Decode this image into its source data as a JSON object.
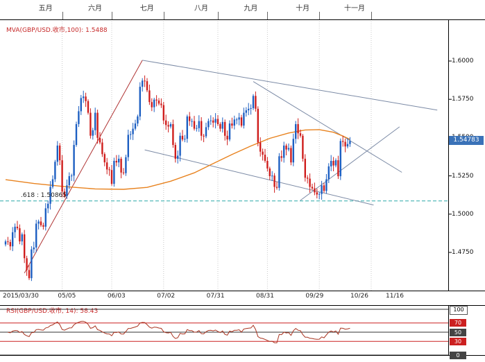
{
  "window": {
    "app_background": "#ffffff",
    "symbol": "GBP/USD"
  },
  "main_chart": {
    "indicator_label": "MVA(GBP/USD.收市,100): 1.5488",
    "last_price_label": "1.54783",
    "fib_label": ".618 : 1.50865"
  },
  "rsi_panel": {
    "label": "RSI(GBP/USD.收市, 14): 58.43",
    "level_labels": [
      "100",
      "70",
      "50",
      "30",
      "0"
    ]
  },
  "chart_data": {
    "type": "candlestick",
    "title": "GBP/USD daily candlesticks with MVA(100), trendlines, 61.8% retracement level and RSI(14) sub-panel",
    "x_axis": {
      "month_labels": [
        {
          "label": "五月",
          "idx": 24
        },
        {
          "label": "六月",
          "idx": 45
        },
        {
          "label": "七月",
          "idx": 67
        },
        {
          "label": "八月",
          "idx": 90
        },
        {
          "label": "九月",
          "idx": 111
        },
        {
          "label": "十月",
          "idx": 133
        },
        {
          "label": "十一月",
          "idx": 155
        }
      ],
      "date_labels": [
        {
          "label": "2015/03/30",
          "idx": 0,
          "align": "left"
        },
        {
          "label": "05/05",
          "idx": 26
        },
        {
          "label": "06/03",
          "idx": 47
        },
        {
          "label": "07/02",
          "idx": 68
        },
        {
          "label": "07/31",
          "idx": 89
        },
        {
          "label": "08/31",
          "idx": 110
        },
        {
          "label": "09/29",
          "idx": 131
        },
        {
          "label": "10/26",
          "idx": 150
        },
        {
          "label": "11/16",
          "idx": 165
        }
      ]
    },
    "y_axis": {
      "tick_labels": [
        "1.6000",
        "1.5750",
        "1.5500",
        "1.5250",
        "1.5000",
        "1.4750"
      ],
      "tick_values": [
        1.6,
        1.575,
        1.55,
        1.525,
        1.5,
        1.475
      ]
    },
    "closes": [
      1.4822,
      1.4818,
      1.479,
      1.4882,
      1.4918,
      1.4908,
      1.4822,
      1.4868,
      1.4712,
      1.4635,
      1.4582,
      1.477,
      1.4782,
      1.4938,
      1.4952,
      1.4928,
      1.4918,
      1.5038,
      1.5068,
      1.5178,
      1.5228,
      1.5342,
      1.5448,
      1.5352,
      1.5148,
      1.5118,
      1.5188,
      1.5248,
      1.5252,
      1.5452,
      1.5588,
      1.5672,
      1.5758,
      1.5768,
      1.5738,
      1.5662,
      1.5512,
      1.5548,
      1.5662,
      1.5498,
      1.5468,
      1.5392,
      1.5338,
      1.5292,
      1.5288,
      1.5198,
      1.5348,
      1.5338,
      1.5362,
      1.5272,
      1.5268,
      1.5372,
      1.5518,
      1.5522,
      1.5558,
      1.5592,
      1.5638,
      1.5832,
      1.5872,
      1.5868,
      1.5808,
      1.5732,
      1.5698,
      1.5748,
      1.5742,
      1.5722,
      1.5712,
      1.5612,
      1.5582,
      1.5572,
      1.5588,
      1.5452,
      1.5362,
      1.5382,
      1.5512,
      1.5488,
      1.5492,
      1.5638,
      1.5608,
      1.5608,
      1.5558,
      1.5562,
      1.5608,
      1.5512,
      1.5508,
      1.5568,
      1.5608,
      1.5612,
      1.5598,
      1.5622,
      1.5588,
      1.5558,
      1.5602,
      1.5512,
      1.5488,
      1.5592,
      1.5578,
      1.5618,
      1.5618,
      1.5632,
      1.5578,
      1.5662,
      1.5678,
      1.5688,
      1.5692,
      1.5772,
      1.5688,
      1.5468,
      1.5408,
      1.5388,
      1.5348,
      1.5298,
      1.5248,
      1.5252,
      1.5178,
      1.5172,
      1.5378,
      1.5368,
      1.5448,
      1.5422,
      1.5432,
      1.5338,
      1.5492,
      1.5588,
      1.5528,
      1.5512,
      1.5362,
      1.5238,
      1.5232,
      1.5178,
      1.5168,
      1.5142,
      1.5128,
      1.5132,
      1.5188,
      1.5152,
      1.5228,
      1.5312,
      1.5348,
      1.5318,
      1.5352,
      1.5248,
      1.5478,
      1.5472,
      1.5442,
      1.5458,
      1.5478
    ],
    "mva": {
      "period": 100,
      "last": 1.5488,
      "points": [
        [
          0,
          1.5225
        ],
        [
          12,
          1.52
        ],
        [
          25,
          1.518
        ],
        [
          38,
          1.5165
        ],
        [
          50,
          1.5162
        ],
        [
          60,
          1.5175
        ],
        [
          70,
          1.5215
        ],
        [
          80,
          1.527
        ],
        [
          88,
          1.533
        ],
        [
          96,
          1.539
        ],
        [
          104,
          1.5445
        ],
        [
          112,
          1.5495
        ],
        [
          120,
          1.553
        ],
        [
          127,
          1.555
        ],
        [
          133,
          1.5552
        ],
        [
          139,
          1.5535
        ],
        [
          143,
          1.551
        ],
        [
          146,
          1.5488
        ]
      ]
    },
    "fib_level": 1.50865,
    "last_price": 1.54783,
    "trendlines": [
      {
        "from": [
          8,
          1.4615
        ],
        "to": [
          58,
          1.6005
        ],
        "color": "#b03434"
      },
      {
        "from": [
          58,
          1.6005
        ],
        "to": [
          183,
          1.568
        ],
        "color": "#7b8aa5"
      },
      {
        "from": [
          59,
          1.542
        ],
        "to": [
          156,
          1.506
        ],
        "color": "#7b8aa5"
      },
      {
        "from": [
          105,
          1.5866
        ],
        "to": [
          168,
          1.5273
        ],
        "color": "#7b8aa5"
      },
      {
        "from": [
          125,
          1.509
        ],
        "to": [
          167,
          1.557
        ],
        "color": "#7b8aa5"
      }
    ],
    "rsi": {
      "period": 14,
      "last": 58.43,
      "levels": [
        100,
        70,
        50,
        30,
        0
      ],
      "red_levels": [
        70,
        30
      ]
    },
    "colors": {
      "up": "#1d5fc2",
      "down": "#cf1d1c",
      "mva": "#e8821e",
      "fib": "#2aa8a8",
      "grid": "#c8c8c8",
      "rsi_line": "#a8321e",
      "level_red": "#cc2020",
      "tag_bg": "#3a72b8",
      "axis": "#000000"
    }
  }
}
